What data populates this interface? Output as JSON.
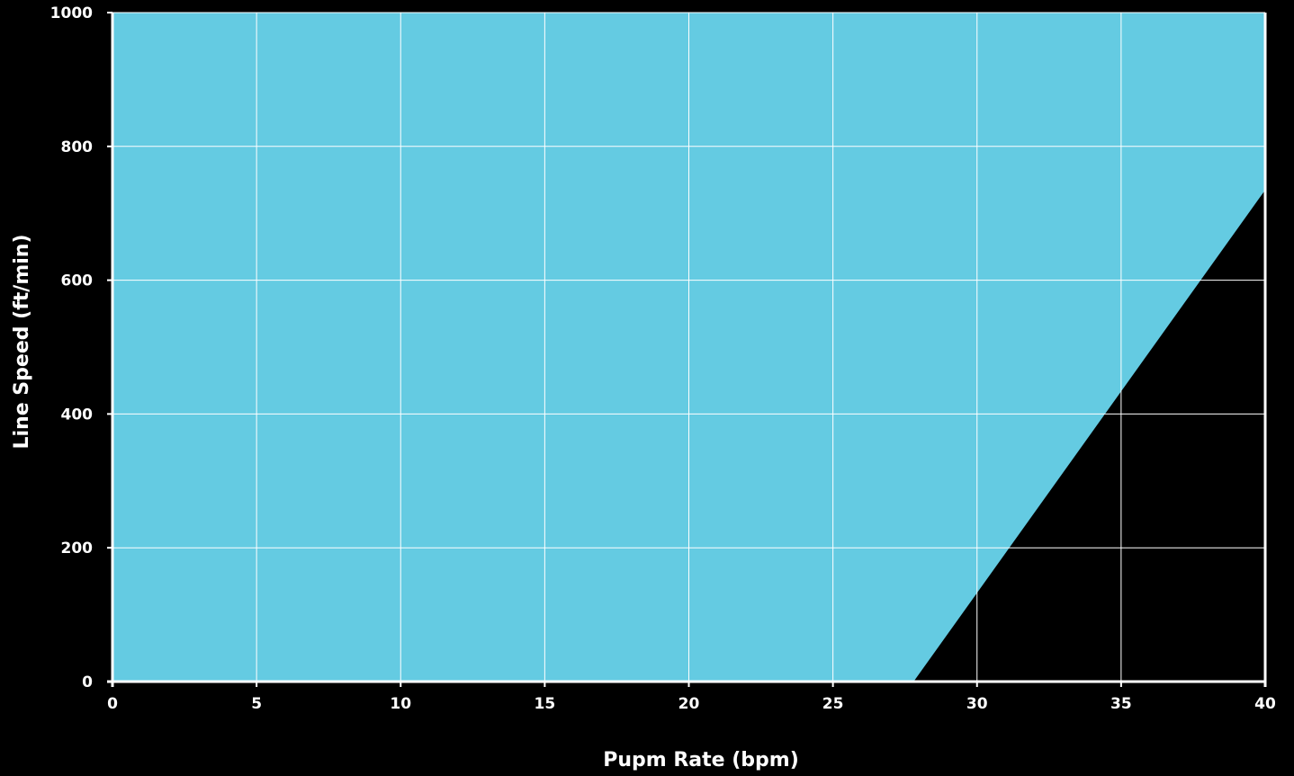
{
  "chart_data": {
    "type": "area",
    "title": "",
    "xlabel": "Pupm Rate (bpm)",
    "ylabel": "Line Speed (ft/min)",
    "xlim": [
      0,
      40
    ],
    "ylim": [
      0,
      1000
    ],
    "x_ticks": [
      0,
      5,
      10,
      15,
      20,
      25,
      30,
      35,
      40
    ],
    "y_ticks": [
      0,
      200,
      400,
      600,
      800,
      1000
    ],
    "x_tick_labels": [
      "0",
      "5",
      "10",
      "15",
      "20",
      "25",
      "30",
      "35",
      "40"
    ],
    "y_tick_labels": [
      "0",
      "200",
      "400",
      "600",
      "800",
      "1000"
    ],
    "grid": true,
    "boundary": {
      "x": [
        0,
        27.8,
        40
      ],
      "y": [
        0,
        0,
        735
      ]
    },
    "colors": {
      "region_fill": "#64CBE2",
      "background": "#000000",
      "grid": "#ffffff",
      "text": "#ffffff"
    }
  }
}
